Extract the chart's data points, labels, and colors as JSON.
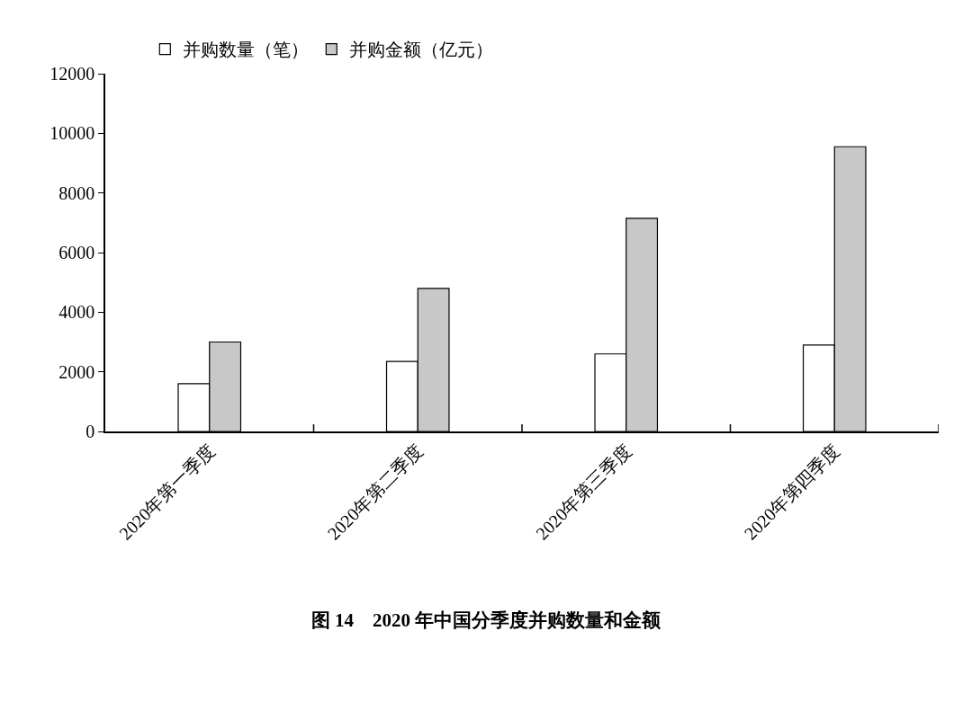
{
  "chart_data": {
    "type": "bar",
    "title": "图 14　2020 年中国分季度并购数量和金额",
    "categories": [
      "2020年第一季度",
      "2020年第二季度",
      "2020年第三季度",
      "2020年第四季度"
    ],
    "series": [
      {
        "name": "并购数量（笔）",
        "color": "#ffffff",
        "values": [
          1600,
          2350,
          2600,
          2900
        ]
      },
      {
        "name": "并购金额（亿元）",
        "color": "#c8c8c8",
        "values": [
          3000,
          4800,
          7150,
          9550
        ]
      }
    ],
    "ylim": [
      0,
      12000
    ],
    "yticks": [
      0,
      2000,
      4000,
      6000,
      8000,
      10000,
      12000
    ],
    "grid": false,
    "legend": "top left"
  }
}
